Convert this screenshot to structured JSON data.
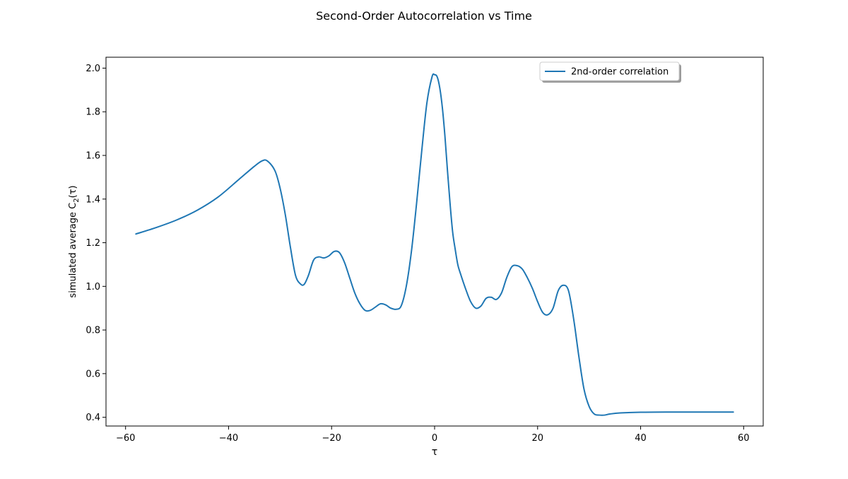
{
  "chart_data": {
    "type": "line",
    "title": "Second-Order Autocorrelation vs Time",
    "xlabel": "τ",
    "ylabel_prefix": "simulated average C",
    "ylabel_sub": "2",
    "ylabel_suffix": "(τ)",
    "xlim": [
      -63.8,
      63.8
    ],
    "ylim": [
      0.36,
      2.05
    ],
    "xticks": [
      -60,
      -40,
      -20,
      0,
      20,
      40,
      60
    ],
    "xtick_labels": [
      "−60",
      "−40",
      "−20",
      "0",
      "20",
      "40",
      "60"
    ],
    "yticks": [
      0.4,
      0.6,
      0.8,
      1.0,
      1.2,
      1.4,
      1.6,
      1.8,
      2.0
    ],
    "ytick_labels": [
      "0.4",
      "0.6",
      "0.8",
      "1.0",
      "1.2",
      "1.4",
      "1.6",
      "1.8",
      "2.0"
    ],
    "grid": false,
    "legend_position": "top-right",
    "series": [
      {
        "name": "2nd-order correlation",
        "color": "#1f77b4",
        "x": [
          -58,
          -54,
          -50,
          -46,
          -42,
          -38,
          -35,
          -33.5,
          -32.5,
          -31,
          -30,
          -29,
          -28,
          -27,
          -26,
          -25.3,
          -24.5,
          -23.5,
          -22.5,
          -21.5,
          -20.5,
          -19.5,
          -18.5,
          -17.5,
          -16.5,
          -15.5,
          -14.5,
          -13.5,
          -12.5,
          -11.5,
          -10.5,
          -9.5,
          -8.5,
          -7.5,
          -6.5,
          -5.5,
          -4.5,
          -3.5,
          -2.5,
          -1.5,
          -0.5,
          0,
          0.5,
          1,
          1.5,
          2,
          2.5,
          3,
          3.5,
          4,
          4.5,
          5,
          6,
          7,
          8,
          9,
          10,
          11,
          12,
          13,
          14,
          15,
          16,
          17,
          18,
          19,
          20,
          21,
          22,
          23,
          24,
          25,
          26,
          27,
          28,
          29,
          30,
          31,
          32,
          33,
          34,
          36,
          40,
          45,
          50,
          55,
          58
        ],
        "y": [
          1.24,
          1.27,
          1.305,
          1.35,
          1.41,
          1.49,
          1.55,
          1.575,
          1.575,
          1.53,
          1.45,
          1.33,
          1.18,
          1.05,
          1.01,
          1.01,
          1.05,
          1.12,
          1.135,
          1.13,
          1.14,
          1.16,
          1.155,
          1.11,
          1.04,
          0.97,
          0.92,
          0.89,
          0.89,
          0.905,
          0.92,
          0.915,
          0.9,
          0.895,
          0.91,
          1.0,
          1.16,
          1.38,
          1.62,
          1.84,
          1.96,
          1.97,
          1.96,
          1.91,
          1.82,
          1.69,
          1.53,
          1.38,
          1.25,
          1.17,
          1.1,
          1.06,
          0.99,
          0.93,
          0.9,
          0.91,
          0.945,
          0.95,
          0.94,
          0.97,
          1.04,
          1.09,
          1.095,
          1.08,
          1.04,
          0.99,
          0.93,
          0.88,
          0.87,
          0.9,
          0.98,
          1.005,
          0.98,
          0.85,
          0.68,
          0.53,
          0.45,
          0.415,
          0.41,
          0.41,
          0.415,
          0.42,
          0.423,
          0.424,
          0.424,
          0.424,
          0.424
        ]
      }
    ]
  }
}
